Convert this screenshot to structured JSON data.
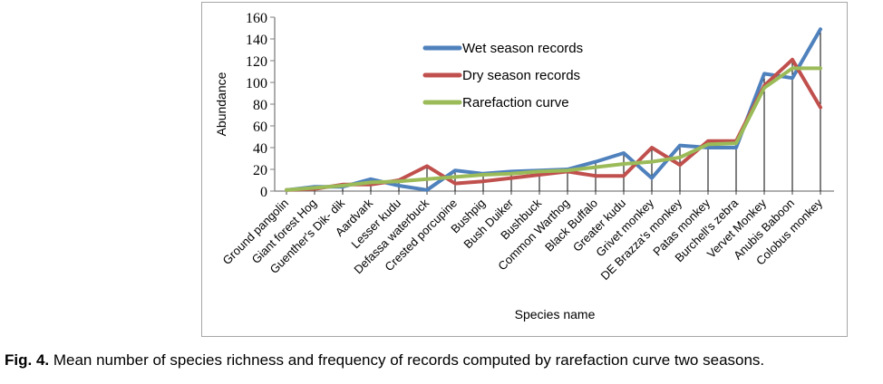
{
  "figure": {
    "caption": {
      "label": "Fig. 4.",
      "text": "Mean number of species richness and frequency of records computed by rarefaction curve two seasons."
    }
  },
  "chart_data": {
    "type": "line",
    "title": "",
    "xlabel": "Species name",
    "ylabel": "Abundance",
    "ylim": [
      0,
      160
    ],
    "yticks": [
      0,
      20,
      40,
      60,
      80,
      100,
      120,
      140,
      160
    ],
    "grid": false,
    "drop_lines": true,
    "legend_position": "inside-top-center",
    "categories": [
      "Ground pangolin",
      "Giant forest Hog",
      "Guenther's Dik- dik",
      "Aardvark",
      "Lesser kudu",
      "Defassa  waterbuck",
      "Crested porcupine",
      "Bushpig",
      "Bush Duiker",
      "Bushbuck",
      "Common Warthog",
      "Black Buffalo",
      "Greater kudu",
      "Grivet monkey",
      "DE Brazza's monkey",
      "Patas monkey",
      "Burchell's zebra",
      "Vervet Monkey",
      "Anubis Baboon",
      "Colobus monkey"
    ],
    "series": [
      {
        "name": "Wet season records",
        "color": "#4f81bd",
        "values": [
          1,
          4,
          4,
          11,
          5,
          1,
          19,
          16,
          18,
          19,
          20,
          27,
          35,
          12,
          42,
          40,
          40,
          108,
          104,
          149
        ]
      },
      {
        "name": "Dry season records",
        "color": "#c0504d",
        "values": [
          1,
          2,
          6,
          6,
          10,
          23,
          7,
          9,
          12,
          15,
          18,
          14,
          14,
          40,
          24,
          46,
          46,
          97,
          121,
          77
        ]
      },
      {
        "name": "Rarefaction curve",
        "color": "#9bbb59",
        "values": [
          1,
          3,
          5,
          8,
          9,
          11,
          13,
          15,
          16,
          18,
          19,
          22,
          25,
          27,
          31,
          43,
          44,
          95,
          113,
          113
        ]
      }
    ]
  }
}
